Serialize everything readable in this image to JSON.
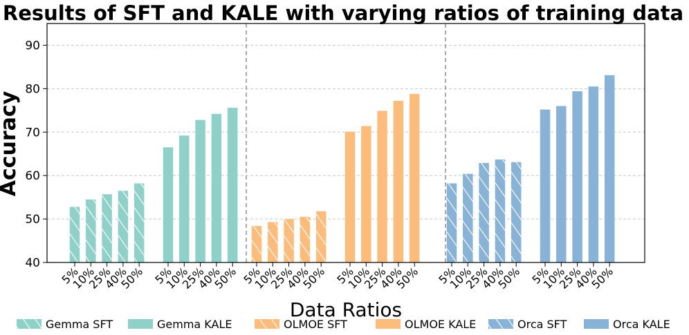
{
  "chart_data": {
    "type": "bar",
    "title": "Results of SFT and KALE with varying ratios of training data",
    "xlabel": "Data Ratios",
    "ylabel": "Accuracy",
    "ylim": [
      40,
      95
    ],
    "yticks": [
      40,
      50,
      60,
      70,
      80,
      90
    ],
    "grid": "horizontal dashed",
    "categories": [
      "5%",
      "10%",
      "25%",
      "40%",
      "50%"
    ],
    "legend_position": "bottom",
    "series": [
      {
        "name": "Gemma SFT",
        "values": [
          52.8,
          54.5,
          55.7,
          56.5,
          58.2
        ],
        "color": "#8fd1c8",
        "hatch": true
      },
      {
        "name": "Gemma KALE",
        "values": [
          66.5,
          69.2,
          72.8,
          74.2,
          75.6
        ],
        "color": "#8fd1c8",
        "hatch": false
      },
      {
        "name": "OLMOE SFT",
        "values": [
          48.4,
          49.3,
          50.0,
          50.5,
          51.8
        ],
        "color": "#fcbc7c",
        "hatch": true
      },
      {
        "name": "OLMOE KALE",
        "values": [
          70.1,
          71.4,
          74.9,
          77.2,
          78.8
        ],
        "color": "#fcbc7c",
        "hatch": false
      },
      {
        "name": "Orca SFT",
        "values": [
          58.2,
          60.4,
          62.9,
          63.7,
          63.1
        ],
        "color": "#88b3d6",
        "hatch": true
      },
      {
        "name": "Orca KALE",
        "values": [
          75.2,
          76.0,
          79.4,
          80.5,
          83.1
        ],
        "color": "#88b3d6",
        "hatch": false
      }
    ]
  }
}
